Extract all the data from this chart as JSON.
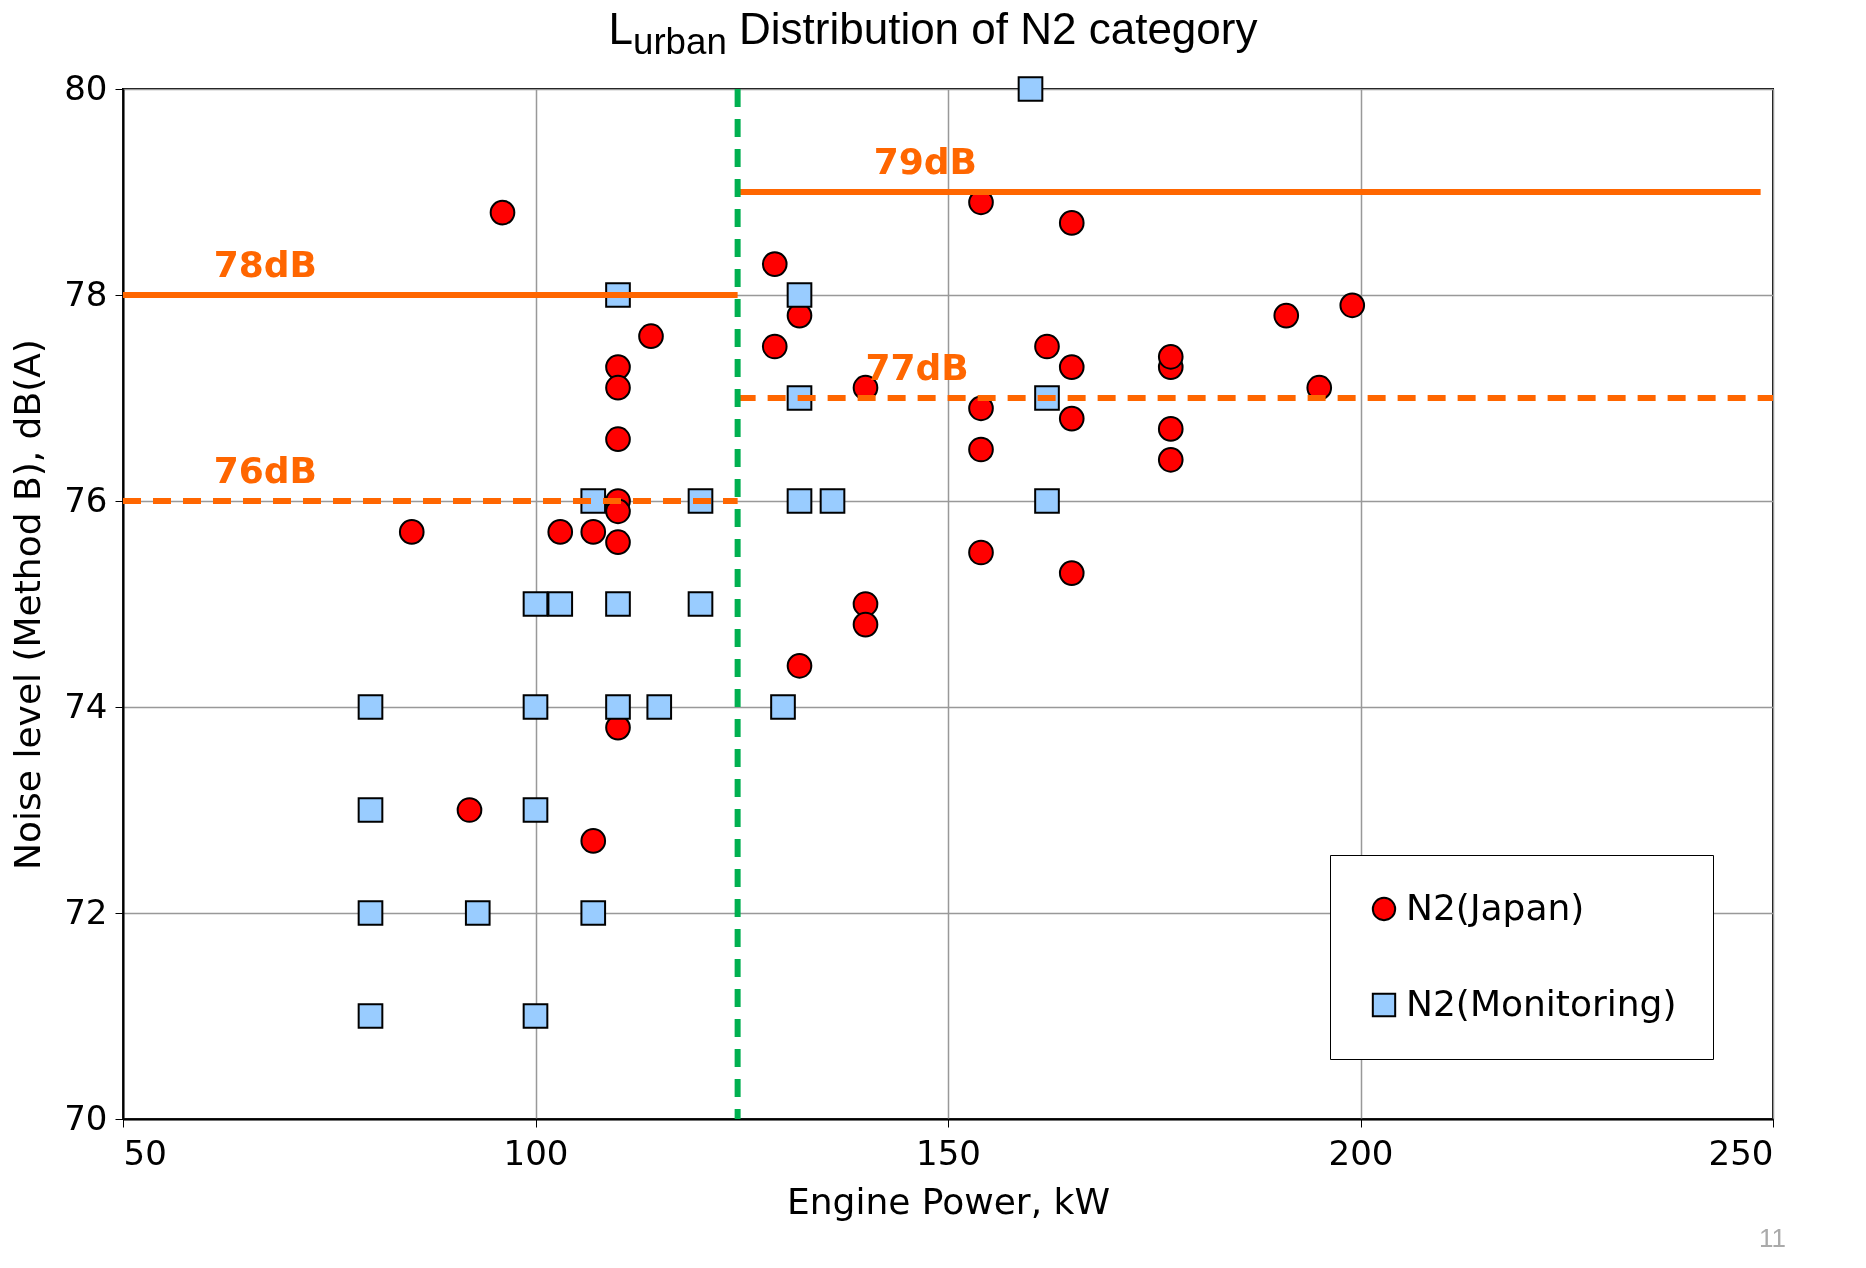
{
  "chart_data": {
    "type": "scatter",
    "title": "L$_{urban}$ Distribution of N2 category",
    "xlabel": "Engine Power, kW",
    "ylabel": "Noise level (Method B), dB(A)",
    "xlim": [
      50,
      250
    ],
    "xticks": [
      50,
      100,
      150,
      200,
      250
    ],
    "ylim": [
      70,
      80
    ],
    "yticks": [
      70,
      72,
      74,
      76,
      78,
      80
    ],
    "grid": true,
    "legend": "bottom right",
    "series": [
      {
        "name": "N2(Japan)",
        "color": "#ff0000",
        "marker": "circle",
        "x": [
          96,
          85,
          92,
          103,
          107,
          107,
          110,
          110,
          110,
          110,
          110,
          110,
          110,
          114,
          129,
          129,
          132,
          132,
          140,
          140,
          140,
          154,
          154,
          154,
          154,
          162,
          165,
          165,
          165,
          165,
          177,
          177,
          177,
          177,
          191,
          195,
          199
        ],
        "values": [
          78.8,
          75.7,
          73.0,
          75.7,
          75.7,
          72.7,
          77.3,
          77.1,
          76.6,
          76.0,
          75.9,
          75.6,
          73.8,
          77.6,
          78.3,
          77.5,
          77.8,
          74.4,
          77.1,
          75.0,
          74.8,
          78.9,
          76.9,
          76.5,
          75.5,
          77.5,
          78.7,
          77.3,
          76.8,
          75.3,
          77.3,
          77.4,
          76.7,
          76.4,
          77.8,
          77.1,
          77.9
        ]
      },
      {
        "name": "N2(Monitoring)",
        "color": "#99ccff",
        "marker": "square",
        "x": [
          80,
          80,
          80,
          80,
          93,
          100,
          100,
          100,
          100,
          103,
          107,
          107,
          110,
          110,
          110,
          115,
          120,
          120,
          130,
          132,
          132,
          132,
          136,
          160,
          162,
          162
        ],
        "values": [
          74,
          73,
          72,
          71,
          72,
          75,
          74,
          73,
          71,
          75,
          76,
          72,
          78,
          75,
          74,
          74,
          76,
          75,
          74,
          78,
          77,
          76,
          76,
          80,
          77,
          76
        ]
      },
      {
        "type": "line",
        "color": "#ff6600",
        "line_style": "solid",
        "x": [
          50,
          124.5
        ],
        "values": [
          78,
          78
        ]
      },
      {
        "type": "line",
        "color": "#ff6600",
        "line_style": "dashed",
        "x": [
          50,
          124.5
        ],
        "values": [
          76,
          76
        ]
      },
      {
        "type": "line",
        "color": "#ff6600",
        "line_style": "solid",
        "x": [
          124.5,
          248.5
        ],
        "values": [
          79,
          79
        ]
      },
      {
        "type": "line",
        "color": "#ff6600",
        "line_style": "dashed",
        "x": [
          124.5,
          250
        ],
        "values": [
          77,
          77
        ]
      }
    ],
    "ref_lines": [
      {
        "axis": "x",
        "value": 124.5,
        "color": "#00b050",
        "line_style": "dashed"
      }
    ],
    "annotations": [
      {
        "text": "78dB",
        "x": 61,
        "y": 78
      },
      {
        "text": "76dB",
        "x": 61,
        "y": 76
      },
      {
        "text": "79dB",
        "x": 141,
        "y": 79
      },
      {
        "text": "77dB",
        "x": 140,
        "y": 77
      },
      "11"
    ]
  }
}
